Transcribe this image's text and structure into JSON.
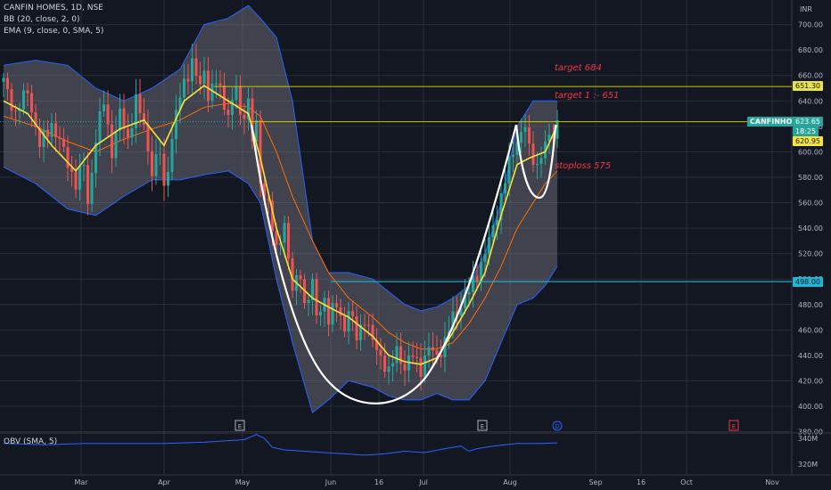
{
  "legend": {
    "symbol": "CANFIN HOMES, 1D, NSE",
    "bb": "BB (20, close, 2, 0)",
    "ema": "EMA (9, close, 0, SMA, 5)",
    "obv": "OBV (SMA, 5)"
  },
  "colors": {
    "background": "#131722",
    "grid": "#2a2e39",
    "up": "#26a69a",
    "down": "#ef5350",
    "bb_band": "#2962ff",
    "bb_fill": "#787b86",
    "ema": "#f7e43a",
    "basis": "#ff6d00",
    "target_line": "#c9c41f",
    "level_line": "#1fb5d4",
    "annotation": "#f23645",
    "pattern": "#ffffff",
    "obv": "#2962ff"
  },
  "axis": {
    "unit": "INR",
    "price_ticks": [
      "700.00",
      "680.00",
      "660.00",
      "640.00",
      "620.00",
      "600.00",
      "580.00",
      "560.00",
      "540.00",
      "520.00",
      "500.00",
      "480.00",
      "460.00",
      "440.00",
      "420.00",
      "400.00",
      "380.00"
    ],
    "obv_ticks": [
      "340M",
      "320M"
    ],
    "time_ticks": [
      "Mar",
      "Apr",
      "May",
      "Jun",
      "16",
      "Jul",
      "Aug",
      "Sep",
      "16",
      "Oct",
      "Nov"
    ]
  },
  "price_tags": {
    "target_price": "651.30",
    "symbol_label": "CANFINHOME",
    "last_price": "623.65",
    "countdown": "18:25",
    "ema_value": "620.95",
    "level_price": "498.00"
  },
  "annotations": {
    "target": "target 684",
    "target1": "target 1 :- 651",
    "stoploss": "stoploss 575"
  },
  "event_markers": [
    "E",
    "E",
    "D",
    "E"
  ],
  "chart_data": {
    "type": "candlestick",
    "symbol": "CANFIN HOMES",
    "timeframe": "1D",
    "exchange": "NSE",
    "ylim": [
      380,
      710
    ],
    "horizontal_levels": [
      651.3,
      623.65,
      498.0
    ],
    "last_price": 623.65,
    "ema_value": 620.95,
    "ohlc_path": [
      [
        0,
        655
      ],
      [
        3,
        630
      ],
      [
        6,
        648
      ],
      [
        9,
        605
      ],
      [
        12,
        622
      ],
      [
        15,
        600
      ],
      [
        18,
        575
      ],
      [
        20,
        590
      ],
      [
        21,
        560
      ],
      [
        23,
        610
      ],
      [
        25,
        640
      ],
      [
        27,
        600
      ],
      [
        29,
        630
      ],
      [
        31,
        610
      ],
      [
        33,
        640
      ],
      [
        35,
        620
      ],
      [
        37,
        585
      ],
      [
        39,
        600
      ],
      [
        40,
        570
      ],
      [
        42,
        610
      ],
      [
        43,
        630
      ],
      [
        45,
        655
      ],
      [
        47,
        670
      ],
      [
        49,
        650
      ],
      [
        50,
        665
      ],
      [
        51,
        645
      ],
      [
        53,
        655
      ],
      [
        56,
        630
      ],
      [
        58,
        650
      ],
      [
        59,
        625
      ],
      [
        61,
        640
      ],
      [
        62,
        610
      ],
      [
        63,
        620
      ],
      [
        64,
        575
      ],
      [
        66,
        560
      ],
      [
        68,
        520
      ],
      [
        70,
        545
      ],
      [
        72,
        490
      ],
      [
        74,
        505
      ],
      [
        75,
        480
      ],
      [
        77,
        495
      ],
      [
        78,
        470
      ],
      [
        80,
        485
      ],
      [
        81,
        468
      ],
      [
        83,
        480
      ],
      [
        85,
        462
      ],
      [
        86,
        475
      ],
      [
        88,
        455
      ],
      [
        90,
        470
      ],
      [
        92,
        450
      ],
      [
        94,
        440
      ],
      [
        96,
        425
      ],
      [
        98,
        445
      ],
      [
        100,
        430
      ],
      [
        102,
        440
      ],
      [
        104,
        430
      ],
      [
        106,
        445
      ],
      [
        108,
        440
      ],
      [
        110,
        450
      ],
      [
        112,
        470
      ],
      [
        114,
        480
      ],
      [
        116,
        490
      ],
      [
        118,
        505
      ],
      [
        120,
        520
      ],
      [
        122,
        540
      ],
      [
        124,
        565
      ],
      [
        126,
        590
      ],
      [
        128,
        610
      ],
      [
        130,
        620
      ],
      [
        131,
        600
      ],
      [
        133,
        590
      ],
      [
        135,
        605
      ],
      [
        137,
        615
      ],
      [
        138,
        623.65
      ]
    ],
    "ema_path": [
      [
        0,
        640
      ],
      [
        6,
        630
      ],
      [
        12,
        605
      ],
      [
        18,
        585
      ],
      [
        23,
        605
      ],
      [
        29,
        618
      ],
      [
        35,
        625
      ],
      [
        40,
        605
      ],
      [
        45,
        640
      ],
      [
        50,
        652
      ],
      [
        56,
        640
      ],
      [
        61,
        630
      ],
      [
        64,
        595
      ],
      [
        68,
        540
      ],
      [
        72,
        500
      ],
      [
        77,
        485
      ],
      [
        81,
        478
      ],
      [
        86,
        470
      ],
      [
        92,
        455
      ],
      [
        96,
        440
      ],
      [
        100,
        435
      ],
      [
        104,
        433
      ],
      [
        108,
        438
      ],
      [
        112,
        458
      ],
      [
        116,
        480
      ],
      [
        120,
        505
      ],
      [
        124,
        550
      ],
      [
        128,
        590
      ],
      [
        131,
        595
      ],
      [
        135,
        600
      ],
      [
        138,
        620.95
      ]
    ],
    "basis_path": [
      [
        0,
        628
      ],
      [
        8,
        620
      ],
      [
        16,
        608
      ],
      [
        23,
        600
      ],
      [
        30,
        610
      ],
      [
        37,
        618
      ],
      [
        44,
        625
      ],
      [
        50,
        635
      ],
      [
        56,
        638
      ],
      [
        61,
        635
      ],
      [
        64,
        628
      ],
      [
        68,
        600
      ],
      [
        72,
        565
      ],
      [
        77,
        530
      ],
      [
        81,
        505
      ],
      [
        86,
        485
      ],
      [
        92,
        470
      ],
      [
        96,
        458
      ],
      [
        100,
        450
      ],
      [
        104,
        445
      ],
      [
        108,
        445
      ],
      [
        112,
        450
      ],
      [
        116,
        465
      ],
      [
        120,
        485
      ],
      [
        124,
        510
      ],
      [
        128,
        540
      ],
      [
        132,
        560
      ],
      [
        135,
        575
      ],
      [
        138,
        585
      ]
    ],
    "bb_upper": [
      [
        0,
        668
      ],
      [
        8,
        672
      ],
      [
        16,
        668
      ],
      [
        23,
        650
      ],
      [
        30,
        640
      ],
      [
        37,
        650
      ],
      [
        44,
        665
      ],
      [
        50,
        700
      ],
      [
        56,
        705
      ],
      [
        61,
        715
      ],
      [
        64,
        705
      ],
      [
        68,
        690
      ],
      [
        72,
        640
      ],
      [
        77,
        530
      ],
      [
        81,
        505
      ],
      [
        86,
        505
      ],
      [
        92,
        500
      ],
      [
        96,
        490
      ],
      [
        100,
        480
      ],
      [
        104,
        475
      ],
      [
        108,
        478
      ],
      [
        112,
        485
      ],
      [
        116,
        495
      ],
      [
        120,
        520
      ],
      [
        124,
        560
      ],
      [
        128,
        620
      ],
      [
        132,
        640
      ],
      [
        135,
        640
      ],
      [
        138,
        640
      ]
    ],
    "bb_lower": [
      [
        0,
        588
      ],
      [
        8,
        575
      ],
      [
        16,
        555
      ],
      [
        23,
        550
      ],
      [
        30,
        565
      ],
      [
        37,
        578
      ],
      [
        44,
        578
      ],
      [
        50,
        582
      ],
      [
        56,
        585
      ],
      [
        61,
        575
      ],
      [
        64,
        560
      ],
      [
        68,
        500
      ],
      [
        72,
        450
      ],
      [
        77,
        395
      ],
      [
        81,
        405
      ],
      [
        86,
        420
      ],
      [
        92,
        415
      ],
      [
        96,
        408
      ],
      [
        100,
        405
      ],
      [
        104,
        405
      ],
      [
        108,
        410
      ],
      [
        112,
        405
      ],
      [
        116,
        405
      ],
      [
        120,
        420
      ],
      [
        124,
        450
      ],
      [
        128,
        480
      ],
      [
        132,
        485
      ],
      [
        135,
        495
      ],
      [
        138,
        510
      ]
    ],
    "obv_path": [
      [
        0,
        336
      ],
      [
        10,
        335
      ],
      [
        20,
        336
      ],
      [
        30,
        336
      ],
      [
        40,
        336
      ],
      [
        50,
        337
      ],
      [
        55,
        338
      ],
      [
        60,
        339
      ],
      [
        63,
        343
      ],
      [
        65,
        340
      ],
      [
        67,
        333
      ],
      [
        70,
        331
      ],
      [
        75,
        330
      ],
      [
        80,
        329
      ],
      [
        85,
        328
      ],
      [
        90,
        327
      ],
      [
        95,
        328
      ],
      [
        100,
        330
      ],
      [
        105,
        329
      ],
      [
        110,
        332
      ],
      [
        114,
        334
      ],
      [
        116,
        330
      ],
      [
        118,
        332
      ],
      [
        122,
        334
      ],
      [
        128,
        336
      ],
      [
        134,
        336
      ],
      [
        138,
        336.5
      ]
    ]
  }
}
